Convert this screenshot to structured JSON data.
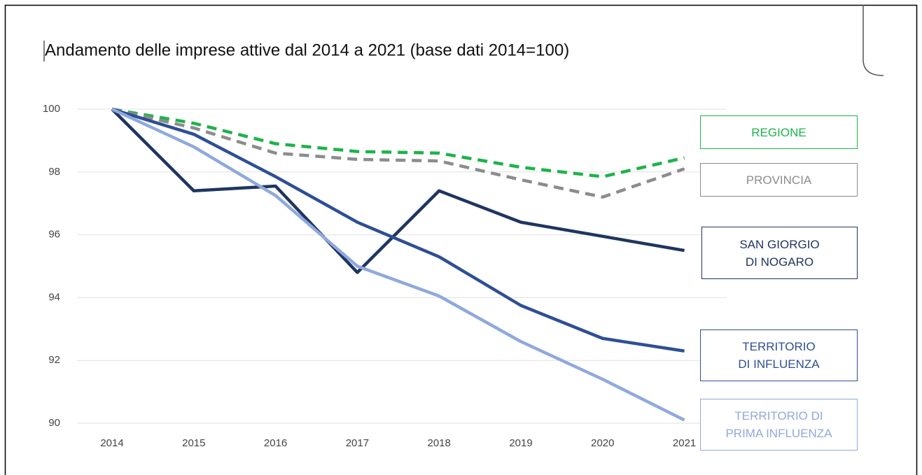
{
  "chart_data": {
    "type": "line",
    "title": "Andamento delle imprese attive dal 2014 a 2021 (base dati 2014=100)",
    "categories": [
      "2014",
      "2015",
      "2016",
      "2017",
      "2018",
      "2019",
      "2020",
      "2021"
    ],
    "series": [
      {
        "name": "REGIONE",
        "color": "#1db34a",
        "dashed": true,
        "values": [
          100,
          99.55,
          98.9,
          98.65,
          98.6,
          98.15,
          97.85,
          98.45
        ]
      },
      {
        "name": "PROVINCIA",
        "color": "#8c8c8c",
        "dashed": true,
        "values": [
          100,
          99.4,
          98.6,
          98.4,
          98.35,
          97.75,
          97.2,
          98.1
        ]
      },
      {
        "name": "SAN GIORGIO\nDI NOGARO",
        "color": "#1f3560",
        "values": [
          100,
          97.4,
          97.55,
          94.8,
          97.4,
          96.4,
          95.95,
          95.5
        ]
      },
      {
        "name": "TERRITORIO\nDI INFLUENZA",
        "color": "#2e4f96",
        "values": [
          100,
          99.2,
          97.85,
          96.4,
          95.3,
          93.75,
          92.7,
          92.3
        ]
      },
      {
        "name": "TERRITORIO DI\nPRIMA INFLUENZA",
        "color": "#8fa9dd",
        "values": [
          100,
          98.8,
          97.25,
          95.0,
          94.05,
          92.6,
          91.4,
          90.1
        ]
      }
    ],
    "ylim": [
      90,
      100
    ],
    "yticks": [
      90,
      92,
      94,
      96,
      98,
      100
    ],
    "grid": true
  }
}
